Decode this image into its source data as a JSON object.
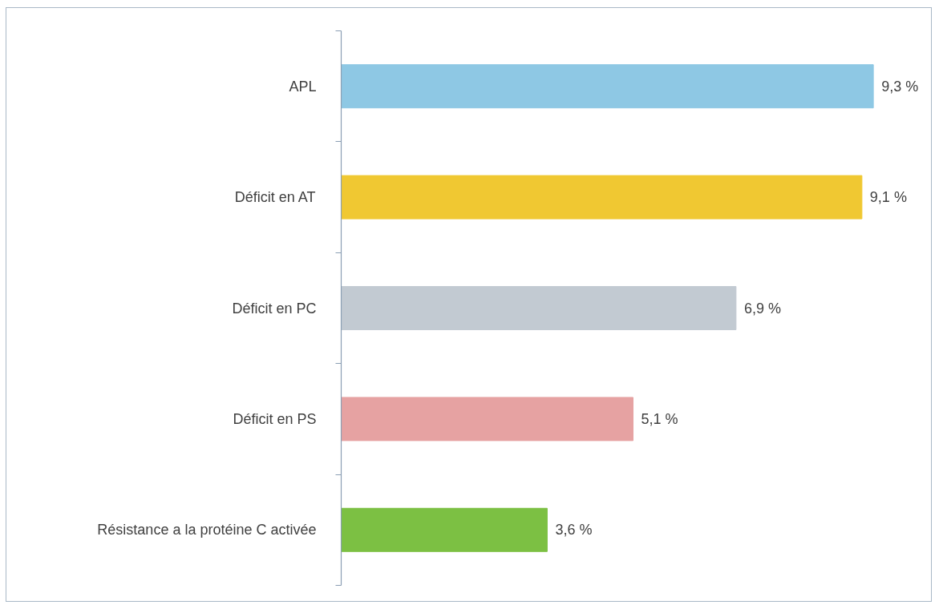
{
  "chart_data": {
    "type": "bar",
    "orientation": "horizontal",
    "categories": [
      "APL",
      "Déficit en AT",
      "Déficit en PC",
      "Déficit en PS",
      "Résistance a la protéine C activée"
    ],
    "values": [
      9.3,
      9.1,
      6.9,
      5.1,
      3.6
    ],
    "colors": [
      "#8ec8e4",
      "#f0c832",
      "#c2cad2",
      "#e6a2a2",
      "#7cc043"
    ],
    "value_labels": [
      "9,3 %",
      "9,1 %",
      "6,9 %",
      "5,1 %",
      "3,6 %"
    ],
    "grid": false
  }
}
